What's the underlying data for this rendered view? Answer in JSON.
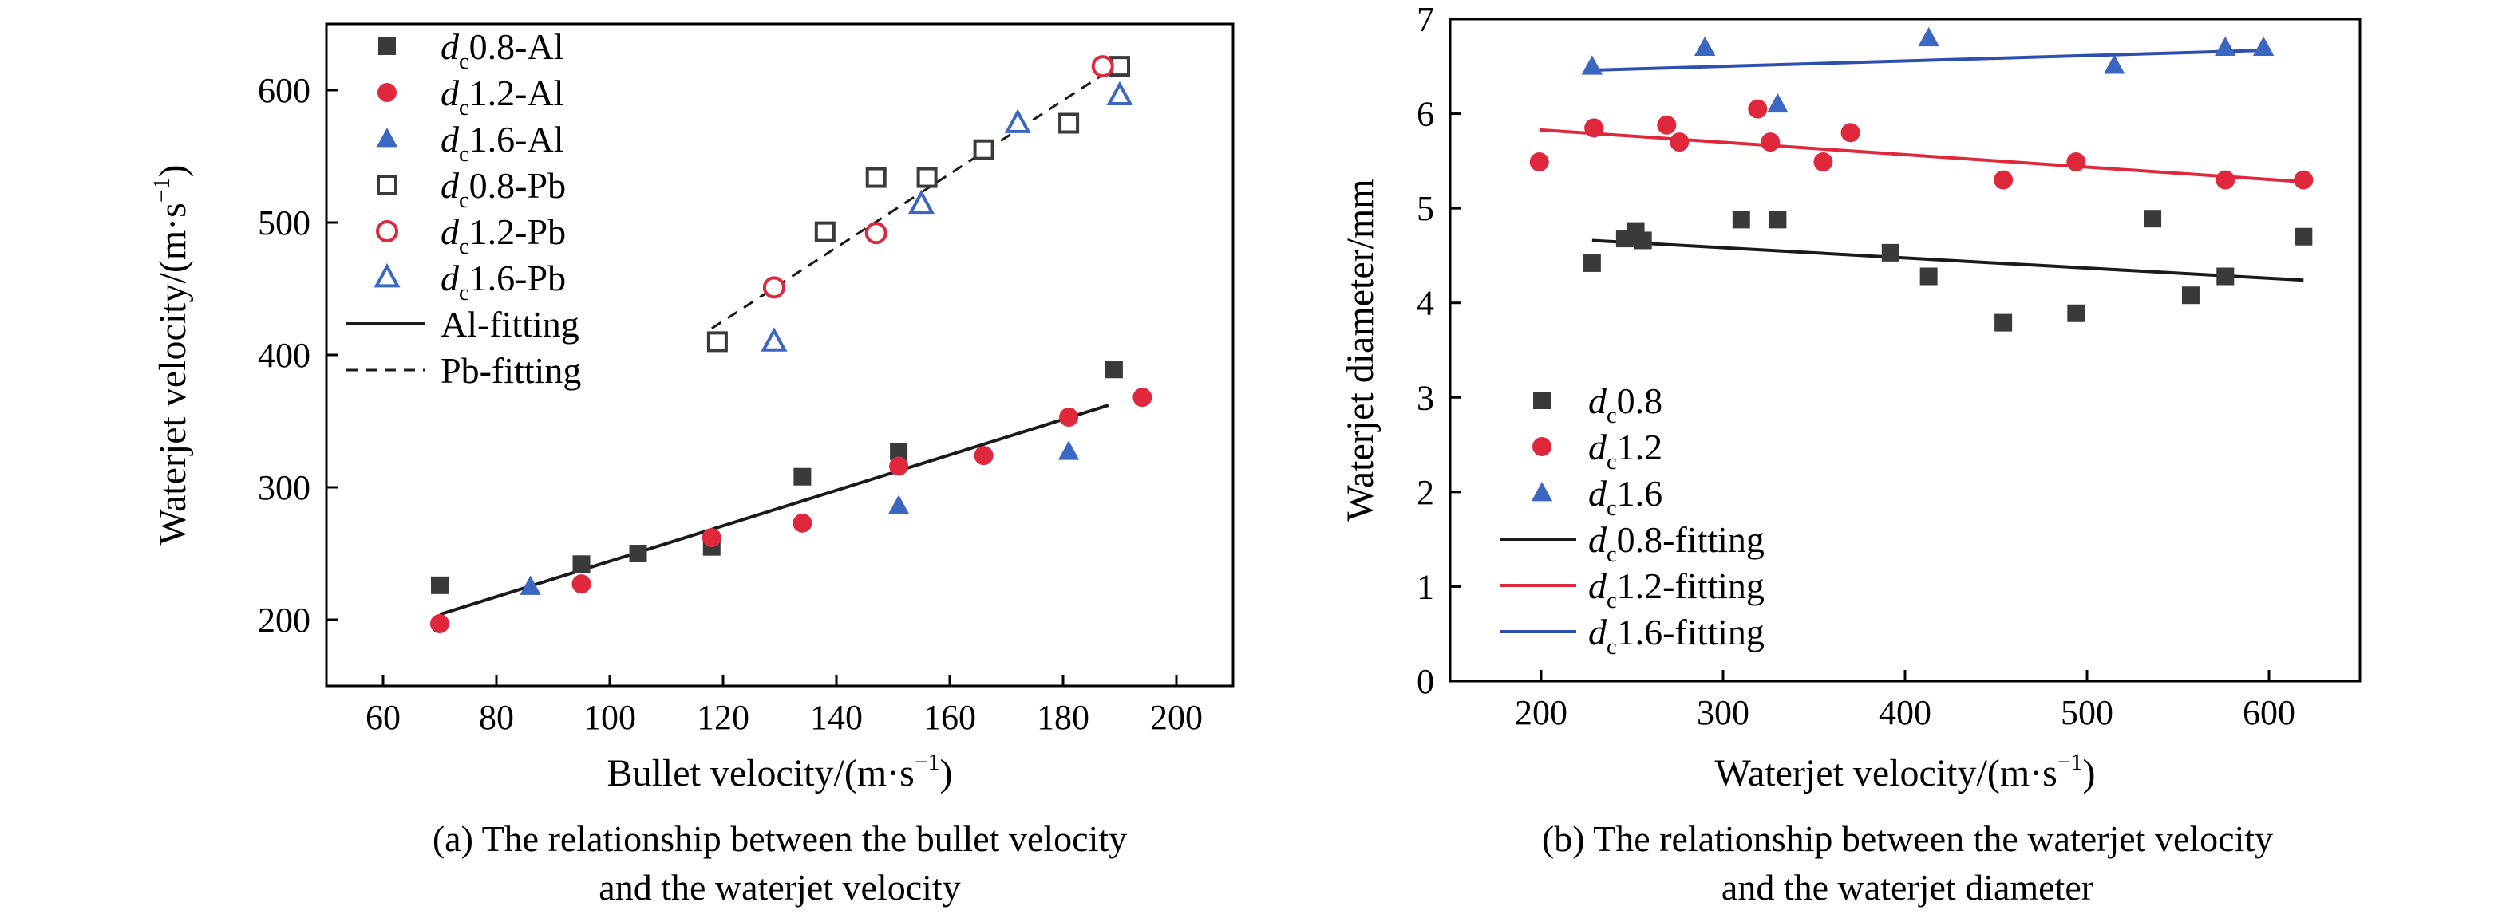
{
  "colors": {
    "black_series": "#3a3a3a",
    "red_series": "#e0283d",
    "blue_series": "#3b67c2",
    "black_line": "#1a1a1a",
    "red_line": "#e0283d",
    "blue_line": "#2f4fb0",
    "axis": "#000000"
  },
  "chart_data": [
    {
      "type": "scatter",
      "caption_line1": "(a) The relationship between the bullet velocity",
      "caption_line2": "and the waterjet velocity",
      "xlabel": "Bullet velocity/(m·s",
      "xlabel_sup": "−1",
      "xlabel_close": ")",
      "ylabel": "Waterjet velocity/(m·s",
      "ylabel_sup": "−1",
      "ylabel_close": ")",
      "xlim": [
        50,
        210
      ],
      "ylim": [
        150,
        650
      ],
      "xticks": [
        "60",
        "80",
        "100",
        "120",
        "140",
        "160",
        "180",
        "200"
      ],
      "yticks": [
        "200",
        "300",
        "400",
        "500",
        "600"
      ],
      "xtick_values": [
        60,
        80,
        100,
        120,
        140,
        160,
        180,
        200
      ],
      "ytick_values": [
        200,
        300,
        400,
        500,
        600
      ],
      "legend_position": "top-left",
      "series": [
        {
          "label_main": "d",
          "label_sub": "c",
          "label_rest": "0.8-Al",
          "marker": "square",
          "filled": true,
          "color": "#3a3a3a",
          "x": [
            70,
            95,
            105,
            118,
            134,
            151,
            189
          ],
          "y": [
            226,
            242,
            250,
            255,
            308,
            327,
            389
          ]
        },
        {
          "label_main": "d",
          "label_sub": "c",
          "label_rest": "1.2-Al",
          "marker": "circle",
          "filled": true,
          "color": "#e0283d",
          "x": [
            70,
            95,
            118,
            134,
            151,
            166,
            181,
            194
          ],
          "y": [
            197,
            227,
            262,
            273,
            316,
            324,
            353,
            368
          ]
        },
        {
          "label_main": "d",
          "label_sub": "c",
          "label_rest": "1.6-Al",
          "marker": "triangle",
          "filled": true,
          "color": "#3b67c2",
          "x": [
            86,
            151,
            181
          ],
          "y": [
            225,
            286,
            327
          ]
        },
        {
          "label_main": "d",
          "label_sub": "c",
          "label_rest": "0.8-Pb",
          "marker": "square",
          "filled": false,
          "color": "#3a3a3a",
          "x": [
            119,
            138,
            147,
            156,
            166,
            181,
            190
          ],
          "y": [
            410,
            493,
            534,
            534,
            555,
            575,
            618
          ]
        },
        {
          "label_main": "d",
          "label_sub": "c",
          "label_rest": "1.2-Pb",
          "marker": "circle",
          "filled": false,
          "color": "#e0283d",
          "x": [
            129,
            147,
            187
          ],
          "y": [
            451,
            492,
            618
          ]
        },
        {
          "label_main": "d",
          "label_sub": "c",
          "label_rest": "1.6-Pb",
          "marker": "triangle",
          "filled": false,
          "color": "#3b67c2",
          "x": [
            129,
            155,
            172,
            190
          ],
          "y": [
            410,
            514,
            575,
            596
          ]
        }
      ],
      "fits": [
        {
          "label": "Al-fitting",
          "dash": false,
          "color": "#1a1a1a",
          "x": [
            70,
            188
          ],
          "y": [
            204,
            362
          ]
        },
        {
          "label": "Pb-fitting",
          "dash": true,
          "color": "#1a1a1a",
          "x": [
            118,
            190
          ],
          "y": [
            420,
            620
          ]
        }
      ]
    },
    {
      "type": "scatter",
      "caption_line1": "(b) The relationship between the waterjet velocity",
      "caption_line2": "and the waterjet diameter",
      "xlabel": "Waterjet velocity/(m·s",
      "xlabel_sup": "−1",
      "xlabel_close": ")",
      "ylabel": "Waterjet diameter/mm",
      "xlim": [
        150,
        650
      ],
      "ylim": [
        0,
        7
      ],
      "xticks": [
        "200",
        "300",
        "400",
        "500",
        "600"
      ],
      "yticks": [
        "0",
        "1",
        "2",
        "3",
        "4",
        "5",
        "6",
        "7"
      ],
      "xtick_values": [
        200,
        300,
        400,
        500,
        600
      ],
      "ytick_values": [
        0,
        1,
        2,
        3,
        4,
        5,
        6,
        7
      ],
      "legend_position": "bottom-left",
      "series": [
        {
          "label_main": "d",
          "label_sub": "c",
          "label_rest": "0.8",
          "marker": "square",
          "filled": true,
          "color": "#3a3a3a",
          "x": [
            228,
            246,
            252,
            256,
            310,
            330,
            392,
            413,
            454,
            494,
            536,
            557,
            576,
            619
          ],
          "y": [
            4.42,
            4.68,
            4.76,
            4.66,
            4.88,
            4.88,
            4.53,
            4.28,
            3.79,
            3.89,
            4.89,
            4.08,
            4.28,
            4.7
          ]
        },
        {
          "label_main": "d",
          "label_sub": "c",
          "label_rest": "1.2",
          "marker": "circle",
          "filled": true,
          "color": "#e0283d",
          "x": [
            199,
            229,
            269,
            276,
            319,
            326,
            355,
            370,
            454,
            494,
            576,
            619
          ],
          "y": [
            5.49,
            5.85,
            5.88,
            5.7,
            6.05,
            5.7,
            5.49,
            5.8,
            5.3,
            5.49,
            5.3,
            5.3
          ]
        },
        {
          "label_main": "d",
          "label_sub": "c",
          "label_rest": "1.6",
          "marker": "triangle",
          "filled": true,
          "color": "#3b67c2",
          "x": [
            228,
            290,
            330,
            413,
            515,
            576,
            597
          ],
          "y": [
            6.5,
            6.7,
            6.1,
            6.8,
            6.51,
            6.7,
            6.7
          ]
        }
      ],
      "fits": [
        {
          "label_main": "d",
          "label_sub": "c",
          "label_rest": "0.8-fitting",
          "dash": false,
          "color": "#1a1a1a",
          "x": [
            228,
            619
          ],
          "y": [
            4.66,
            4.24
          ]
        },
        {
          "label_main": "d",
          "label_sub": "c",
          "label_rest": "1.2-fitting",
          "dash": false,
          "color": "#e0283d",
          "x": [
            199,
            619
          ],
          "y": [
            5.83,
            5.28
          ]
        },
        {
          "label_main": "d",
          "label_sub": "c",
          "label_rest": "1.6-fitting",
          "dash": false,
          "color": "#2f4fb0",
          "x": [
            228,
            597
          ],
          "y": [
            6.46,
            6.67
          ]
        }
      ]
    }
  ]
}
